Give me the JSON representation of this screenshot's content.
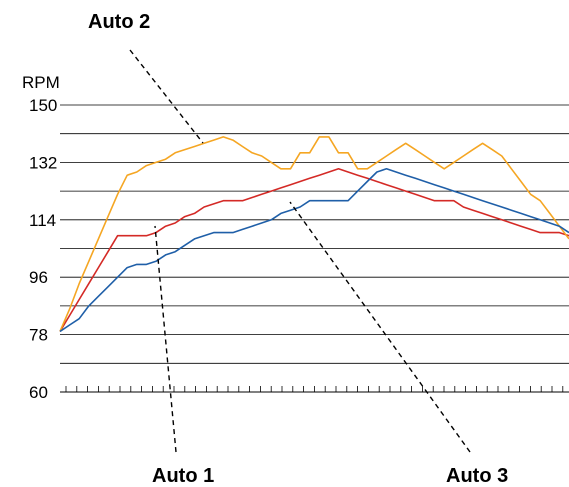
{
  "chart_data": {
    "type": "line",
    "title": "",
    "xlabel": "",
    "ylabel": "RPM",
    "ylim": [
      60,
      150
    ],
    "yticks": [
      60,
      78,
      96,
      114,
      132,
      150
    ],
    "grid": true,
    "x": [
      0,
      1,
      2,
      3,
      4,
      5,
      6,
      7,
      8,
      9,
      10,
      11,
      12,
      13,
      14,
      15,
      16,
      17,
      18,
      19,
      20,
      21,
      22,
      23,
      24,
      25,
      26,
      27,
      28,
      29,
      30,
      31,
      32,
      33,
      34,
      35,
      36,
      37,
      38,
      39,
      40,
      41,
      42,
      43,
      44,
      45,
      46,
      47,
      48,
      49,
      50,
      51,
      52,
      53
    ],
    "series": [
      {
        "name": "Auto 1",
        "color": "#d42a26",
        "values": [
          79,
          84,
          89,
          94,
          99,
          104,
          109,
          109,
          109,
          109,
          110,
          112,
          113,
          115,
          116,
          118,
          119,
          120,
          120,
          120,
          121,
          122,
          123,
          124,
          125,
          126,
          127,
          128,
          129,
          130,
          129,
          128,
          127,
          126,
          125,
          124,
          123,
          122,
          121,
          120,
          120,
          120,
          118,
          117,
          116,
          115,
          114,
          113,
          112,
          111,
          110,
          110,
          110,
          109
        ]
      },
      {
        "name": "Auto 2",
        "color": "#f5a623",
        "values": [
          79,
          86,
          94,
          101,
          108,
          115,
          122,
          128,
          129,
          131,
          132,
          133,
          135,
          136,
          137,
          138,
          139,
          140,
          139,
          137,
          135,
          134,
          132,
          130,
          130,
          135,
          135,
          140,
          140,
          135,
          135,
          130,
          130,
          132,
          134,
          136,
          138,
          136,
          134,
          132,
          130,
          132,
          134,
          136,
          138,
          136,
          134,
          130,
          126,
          122,
          120,
          116,
          112,
          108
        ]
      },
      {
        "name": "Auto 3",
        "color": "#1f5fa8",
        "values": [
          79,
          81,
          83,
          87,
          90,
          93,
          96,
          99,
          100,
          100,
          101,
          103,
          104,
          106,
          108,
          109,
          110,
          110,
          110,
          111,
          112,
          113,
          114,
          116,
          117,
          118,
          120,
          120,
          120,
          120,
          120,
          123,
          126,
          129,
          130,
          129,
          128,
          127,
          126,
          125,
          124,
          123,
          122,
          121,
          120,
          119,
          118,
          117,
          116,
          115,
          114,
          113,
          112,
          110
        ]
      }
    ],
    "annotations": [
      {
        "text": "Auto 1",
        "series": "Auto 1",
        "position": "bottom"
      },
      {
        "text": "Auto 2",
        "series": "Auto 2",
        "position": "top"
      },
      {
        "text": "Auto 3",
        "series": "Auto 3",
        "position": "bottom"
      }
    ]
  }
}
